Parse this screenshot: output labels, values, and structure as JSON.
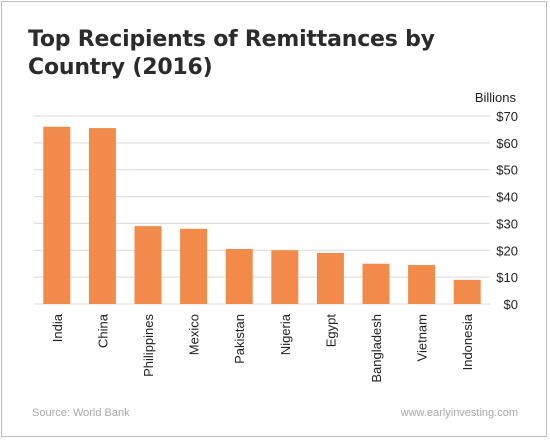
{
  "colors": {
    "bar": "#f28a4a",
    "gridline": "#d9d9d9",
    "text": "#222222"
  },
  "footer": {
    "source": "Source: World Bank",
    "site": "www.earlyinvesting.com"
  },
  "chart_data": {
    "type": "bar",
    "title": "Top Recipients of Remittances by Country (2016)",
    "ylabel": "Billions",
    "categories": [
      "India",
      "China",
      "Philippines",
      "Mexico",
      "Pakistan",
      "Nigeria",
      "Egypt",
      "Bangladesh",
      "Vietnam",
      "Indonesia"
    ],
    "values": [
      66,
      65.5,
      29,
      28,
      20.5,
      20,
      19,
      15,
      14.5,
      9
    ],
    "ylim": [
      0,
      70
    ],
    "yticks": [
      0,
      10,
      20,
      30,
      40,
      50,
      60,
      70
    ],
    "ytick_labels": [
      "$0",
      "$10",
      "$20",
      "$30",
      "$40",
      "$50",
      "$60",
      "$70"
    ],
    "grid": true
  }
}
